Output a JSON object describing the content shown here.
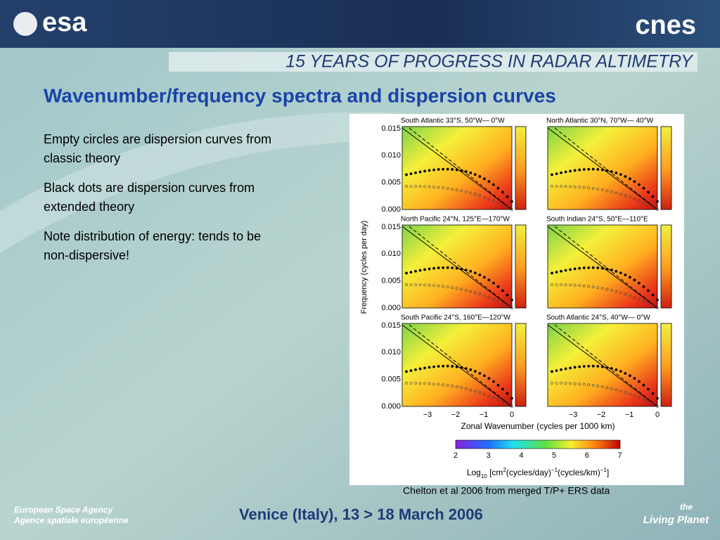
{
  "header": {
    "left_logo": "esa",
    "right_logo": "cnes",
    "banner": "15 YEARS OF PROGRESS IN RADAR ALTIMETRY"
  },
  "title": "Wavenumber/frequency spectra and dispersion curves",
  "bullets": [
    [
      "Empty circles are dispersion curves from",
      "classic theory"
    ],
    [
      "Black dots are dispersion curves from",
      "extended theory"
    ],
    [
      "Note distribution of energy: tends to be",
      "non-dispersive!"
    ]
  ],
  "figure": {
    "panels": [
      "South Atlantic  33°S,  50°W—  0°W",
      "North Atlantic 30°N,  70°W— 40°W",
      "North Pacific   24°N, 125°E—170°W",
      "South Indian    24°S,  50°E—110°E",
      "South Pacific   24°S, 160°E—120°W",
      "South Atlantic 24°S,  40°W—  0°W"
    ],
    "y_ticks": [
      "0.015",
      "0.010",
      "0.005",
      "0.000"
    ],
    "x_ticks": [
      "−3",
      "−2",
      "−1",
      "0"
    ],
    "y_label": "Frequency (cycles per day)",
    "x_label": "Zonal Wavenumber (cycles per 1000 km)",
    "colorbar_ticks": [
      "2",
      "3",
      "4",
      "5",
      "6",
      "7"
    ],
    "colorbar_label": [
      "Log",
      "10",
      " [cm",
      "2",
      "(cycles/day)",
      "−1",
      "(cycles/km)",
      "−1",
      "]"
    ]
  },
  "caption": "Chelton et al 2006 from merged T/P+ ERS data",
  "footer": {
    "agency": [
      "European Space Agency",
      "Agence spatiale européenne"
    ],
    "event": "Venice (Italy), 13 > 18 March 2006",
    "tagline": [
      "the",
      "Living Planet"
    ]
  }
}
